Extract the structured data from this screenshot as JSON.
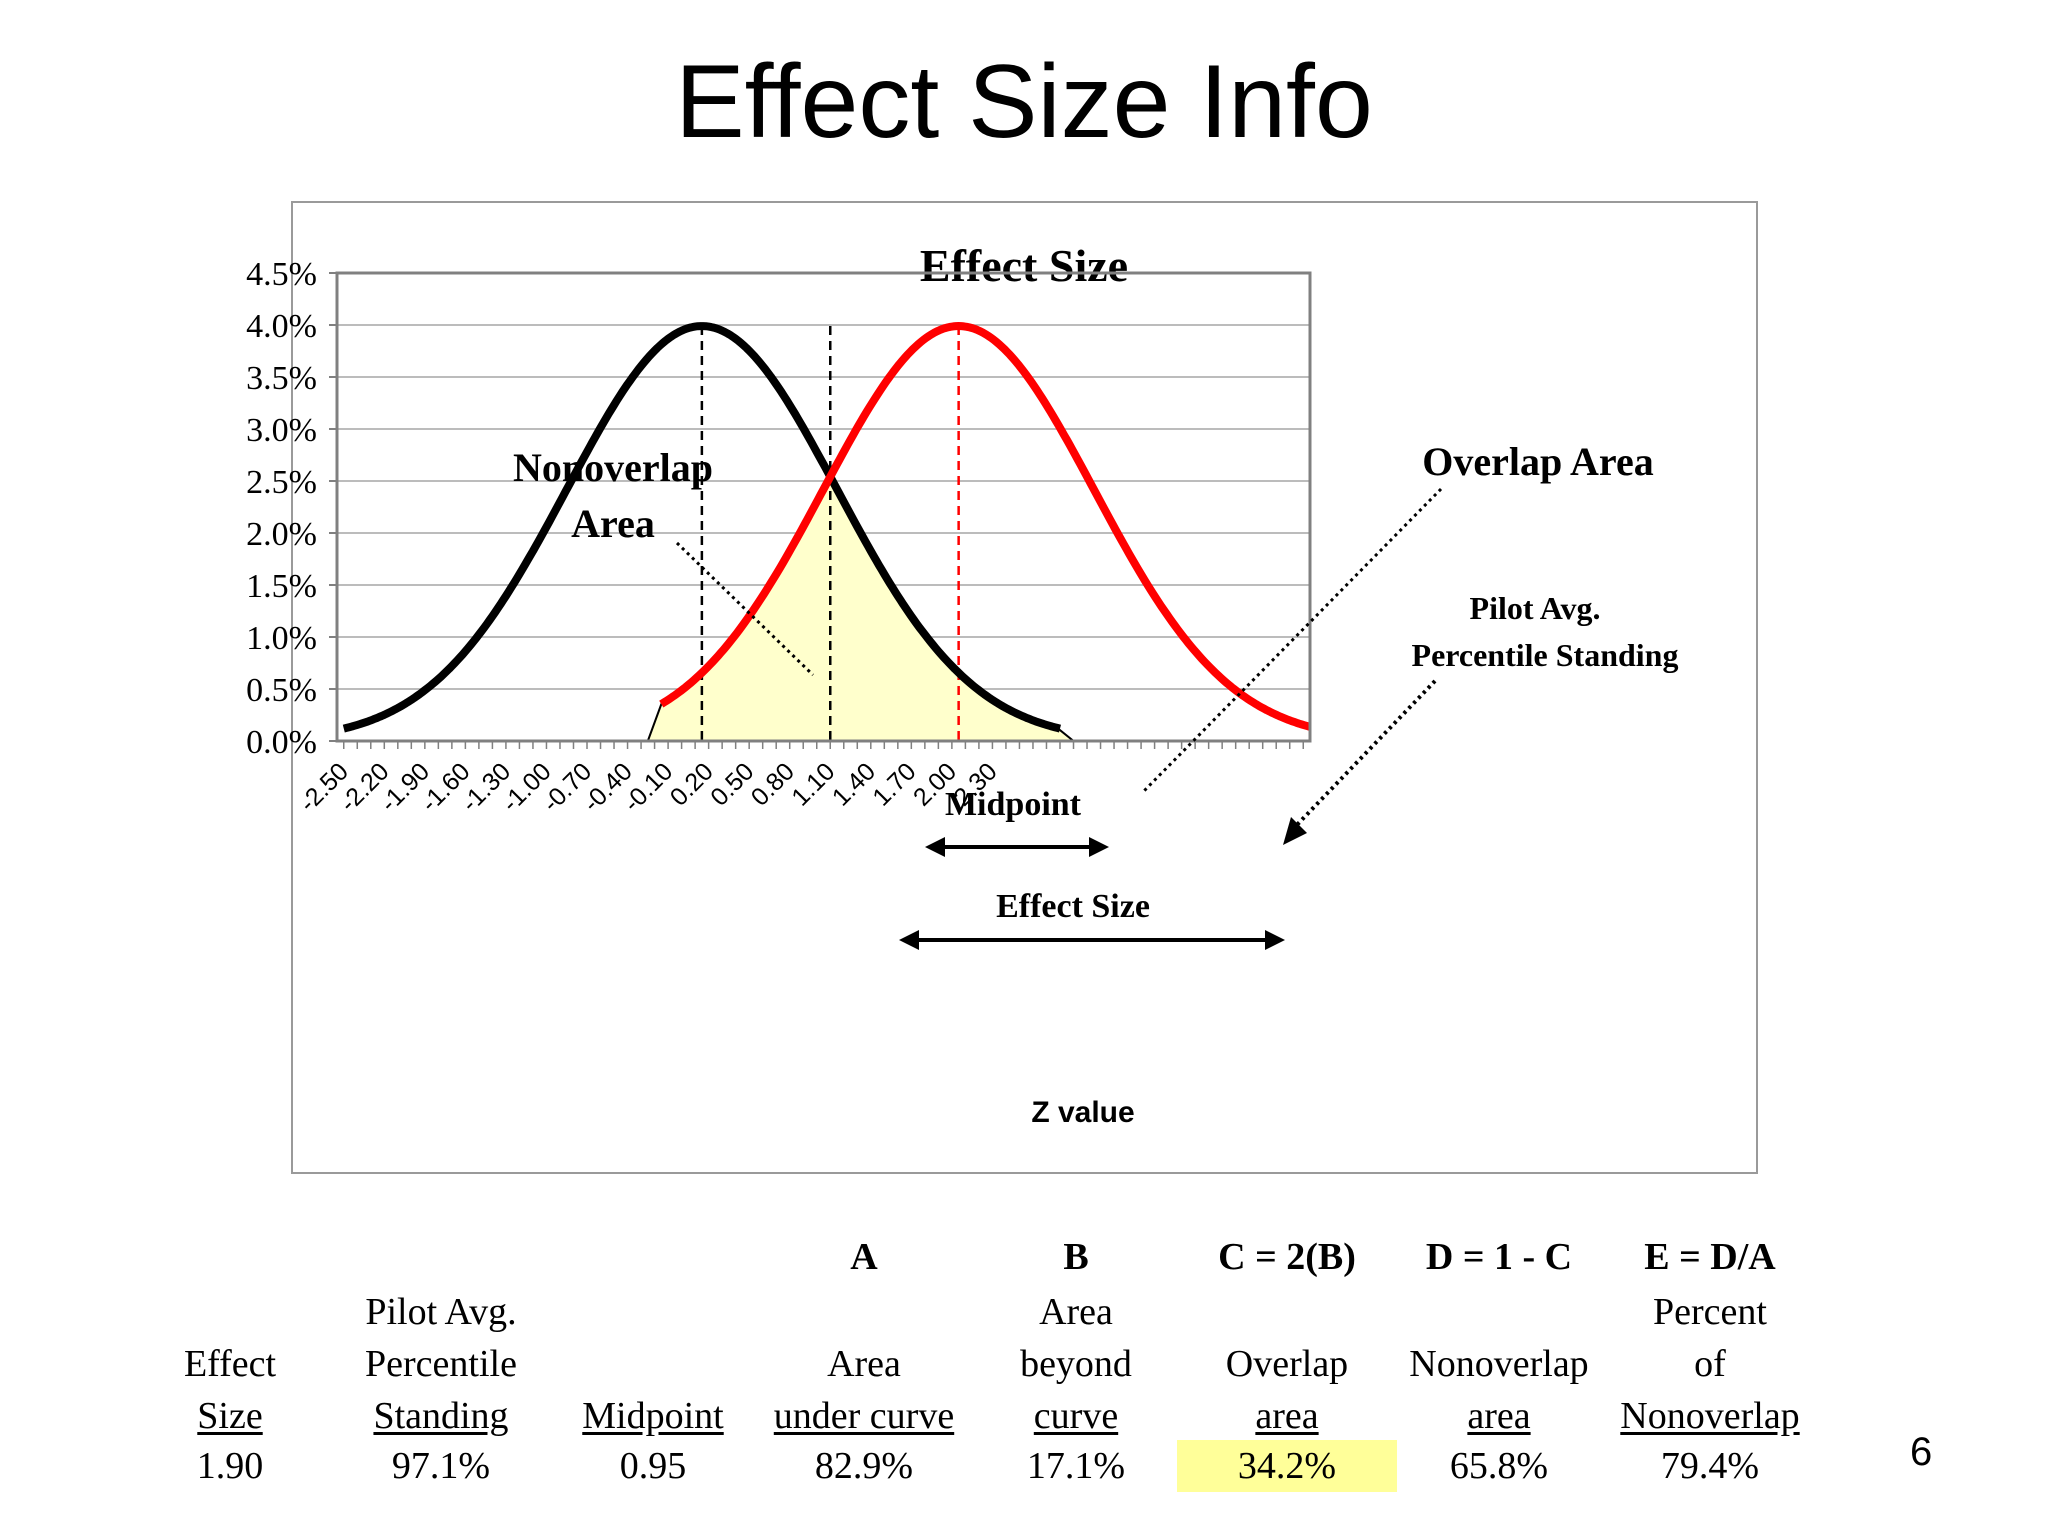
{
  "slide": {
    "title": "Effect Size Info",
    "page_number": "6"
  },
  "chart_data": {
    "type": "line",
    "title": "Effect Size",
    "xlabel": "Z value",
    "ylabel": "",
    "ylim": [
      0,
      4.5
    ],
    "y_ticks": [
      "0.0%",
      "0.5%",
      "1.0%",
      "1.5%",
      "2.0%",
      "2.5%",
      "3.0%",
      "3.5%",
      "4.0%",
      "4.5%"
    ],
    "x_ticks": [
      "-2.50",
      "-2.20",
      "-1.90",
      "-1.60",
      "-1.30",
      "-1.00",
      "-0.70",
      "-0.40",
      "-0.10",
      "0.20",
      "0.50",
      "0.80",
      "1.10",
      "1.40",
      "1.70",
      "2.00",
      "2.30"
    ],
    "grid": true,
    "series": [
      {
        "curve": "normal",
        "mean": 0.15,
        "sd": 1,
        "x_range": [
          -2.5,
          2.8
        ],
        "peak": 3.99,
        "color": "#000000"
      },
      {
        "curve": "normal",
        "mean": 2.05,
        "sd": 1,
        "x_range": [
          -0.15,
          4.65
        ],
        "peak": 3.99,
        "color": "#ff0000"
      }
    ],
    "overlap_fill_color": "#ffffcc",
    "vertical_lines": [
      {
        "x": 0.15,
        "style": "dashed",
        "color": "#000000"
      },
      {
        "x": 1.1,
        "style": "dashed",
        "color": "#000000"
      },
      {
        "x": 2.05,
        "style": "dashed",
        "color": "#ff0000"
      }
    ],
    "annotations": {
      "nonoverlap_line1": "Nonoverlap",
      "nonoverlap_line2": "Area",
      "overlap": "Overlap Area",
      "pilot_line1": "Pilot Avg.",
      "pilot_line2": "Percentile Standing",
      "midpoint": "Midpoint",
      "effect_size": "Effect Size"
    }
  },
  "table": {
    "columns": [
      {
        "header": "",
        "l1": "",
        "l2": "Effect",
        "l3": "Size",
        "value": "1.90",
        "highlight": false
      },
      {
        "header": "",
        "l1": "Pilot Avg.",
        "l2": "Percentile",
        "l3": "Standing",
        "value": "97.1%",
        "highlight": false
      },
      {
        "header": "",
        "l1": "",
        "l2": "",
        "l3": "Midpoint",
        "value": "0.95",
        "highlight": false
      },
      {
        "header": "A",
        "l1": "",
        "l2": "Area",
        "l3": "under curve",
        "value": "82.9%",
        "highlight": false
      },
      {
        "header": "B",
        "l1": "Area",
        "l2": "beyond",
        "l3": "curve",
        "value": "17.1%",
        "highlight": false
      },
      {
        "header": "C = 2(B)",
        "l1": "",
        "l2": "Overlap",
        "l3": "area",
        "value": "34.2%",
        "highlight": true
      },
      {
        "header": "D = 1 - C",
        "l1": "",
        "l2": "Nonoverlap",
        "l3": "area",
        "value": "65.8%",
        "highlight": false
      },
      {
        "header": "E = D/A",
        "l1": "Percent",
        "l2": "of",
        "l3": "Nonoverlap",
        "value": "79.4%",
        "highlight": false
      }
    ]
  }
}
